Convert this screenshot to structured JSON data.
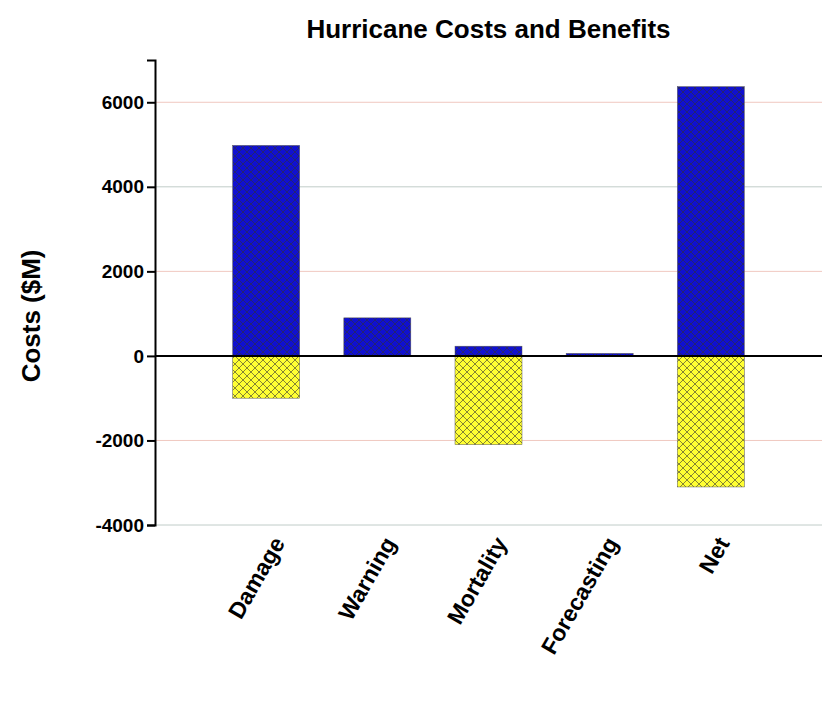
{
  "chart_data": {
    "type": "bar",
    "title": "Hurricane Costs and Benefits",
    "y_label": "Costs ($M)",
    "categories": [
      "Damage",
      "Warning",
      "Mortality",
      "Forecasting",
      "Net"
    ],
    "series": [
      {
        "color": "#1010d0",
        "values": [
          4980,
          900,
          230,
          60,
          6370
        ]
      },
      {
        "color": "#ffff33",
        "values": [
          -1000,
          null,
          -2100,
          null,
          -3100
        ]
      }
    ],
    "ylim": [
      -4000,
      7000
    ],
    "yticks": [
      -4000,
      -2000,
      0,
      2000,
      4000,
      6000
    ],
    "grid": true
  }
}
